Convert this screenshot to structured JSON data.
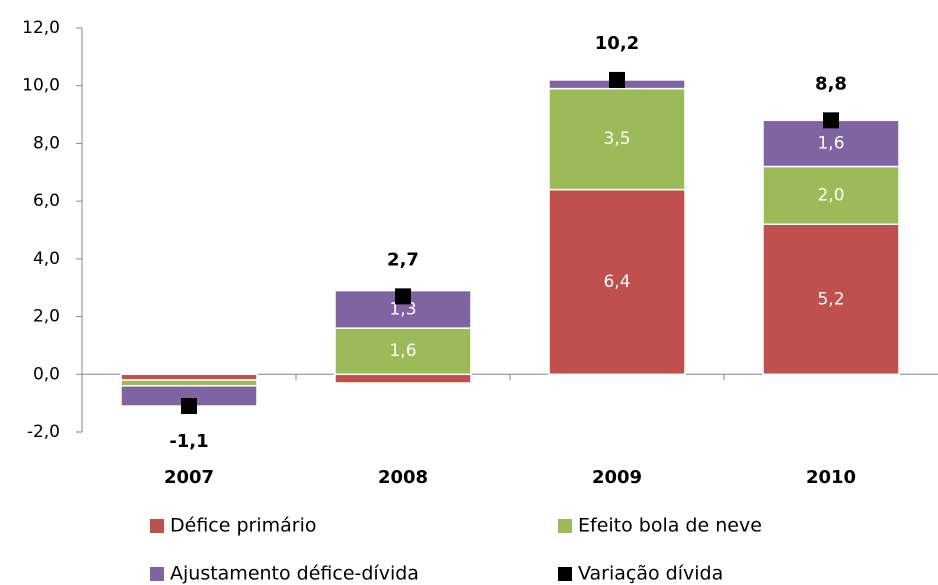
{
  "chart_data": {
    "type": "stacked_bar",
    "categories": [
      "2007",
      "2008",
      "2009",
      "2010"
    ],
    "ylim": [
      -2,
      12
    ],
    "yticks": [
      {
        "value": -2,
        "label": "-2,0"
      },
      {
        "value": 0,
        "label": "0,0"
      },
      {
        "value": 2,
        "label": "2,0"
      },
      {
        "value": 4,
        "label": "4,0"
      },
      {
        "value": 6,
        "label": "6,0"
      },
      {
        "value": 8,
        "label": "8,0"
      },
      {
        "value": 10,
        "label": "10,0"
      },
      {
        "value": 12,
        "label": "12,0"
      }
    ],
    "series": [
      {
        "name": "Défice primário",
        "color": "#c0504d",
        "values": [
          -0.2,
          -0.3,
          6.4,
          5.2
        ],
        "value_labels": [
          null,
          null,
          "6,4",
          "5,2"
        ]
      },
      {
        "name": "Efeito bola de neve",
        "color": "#9bbb59",
        "values": [
          -0.2,
          1.6,
          3.5,
          2.0
        ],
        "value_labels": [
          null,
          "1,6",
          "3,5",
          "2,0"
        ]
      },
      {
        "name": "Ajustamento défice-dívida",
        "color": "#8064a2",
        "values": [
          -0.7,
          1.3,
          0.3,
          1.6
        ],
        "value_labels": [
          null,
          "1,3",
          null,
          "1,6"
        ]
      },
      {
        "name": "Variação dívida",
        "color": "#000000",
        "type": "marker",
        "values": [
          -1.1,
          2.7,
          10.2,
          8.8
        ],
        "value_labels": [
          "-1,1",
          "2,7",
          "10,2",
          "8,8"
        ]
      }
    ],
    "legend": "bottom"
  }
}
